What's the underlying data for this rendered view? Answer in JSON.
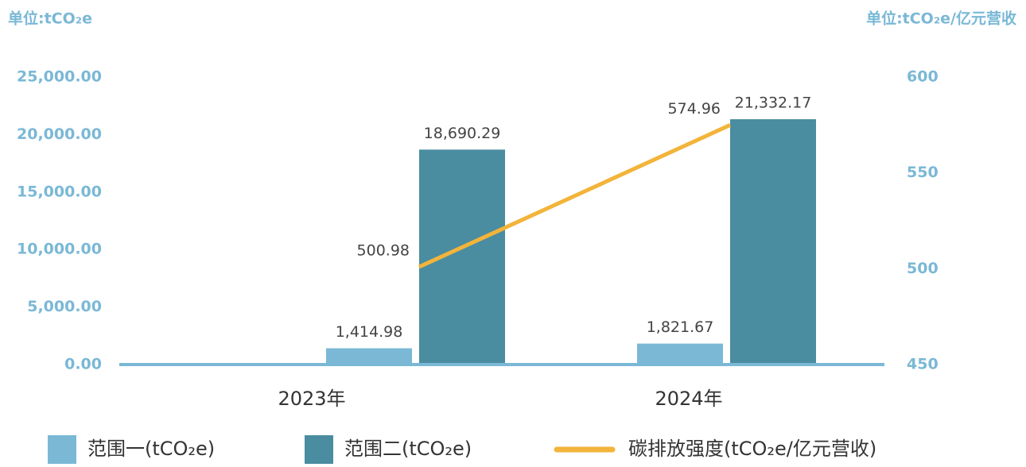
{
  "chart_data": {
    "type": "bar",
    "y_label": "单位:tCO₂e",
    "y2_label": "单位:tCO₂e/亿元营收",
    "categories": [
      "2023年",
      "2024年"
    ],
    "series": [
      {
        "name": "范围一(tCO₂e)",
        "color": "#7ab8d6",
        "values": [
          1414.98,
          1821.67
        ],
        "value_labels": [
          "1,414.98",
          "1,821.67"
        ]
      },
      {
        "name": "范围二(tCO₂e)",
        "color": "#4a8ca0",
        "values": [
          18690.29,
          21332.17
        ],
        "value_labels": [
          "18,690.29",
          "21,332.17"
        ]
      },
      {
        "name": "碳排放强度(tCO₂e/亿元营收)",
        "type": "line",
        "axis": "y2",
        "color": "#f2b43a",
        "values": [
          500.98,
          574.96
        ]
      }
    ],
    "ylim": [
      0,
      25000
    ],
    "yticks": [
      {
        "value": 0,
        "label": "0.00"
      },
      {
        "value": 5000,
        "label": "5,000.00"
      },
      {
        "value": 10000,
        "label": "10,000.00"
      },
      {
        "value": 15000,
        "label": "15,000.00"
      },
      {
        "value": 20000,
        "label": "20,000.00"
      },
      {
        "value": 25000,
        "label": "25,000.00"
      }
    ],
    "y2lim": [
      450,
      600
    ],
    "y2ticks": [
      450,
      500,
      550,
      600
    ],
    "legend": "bottom"
  }
}
